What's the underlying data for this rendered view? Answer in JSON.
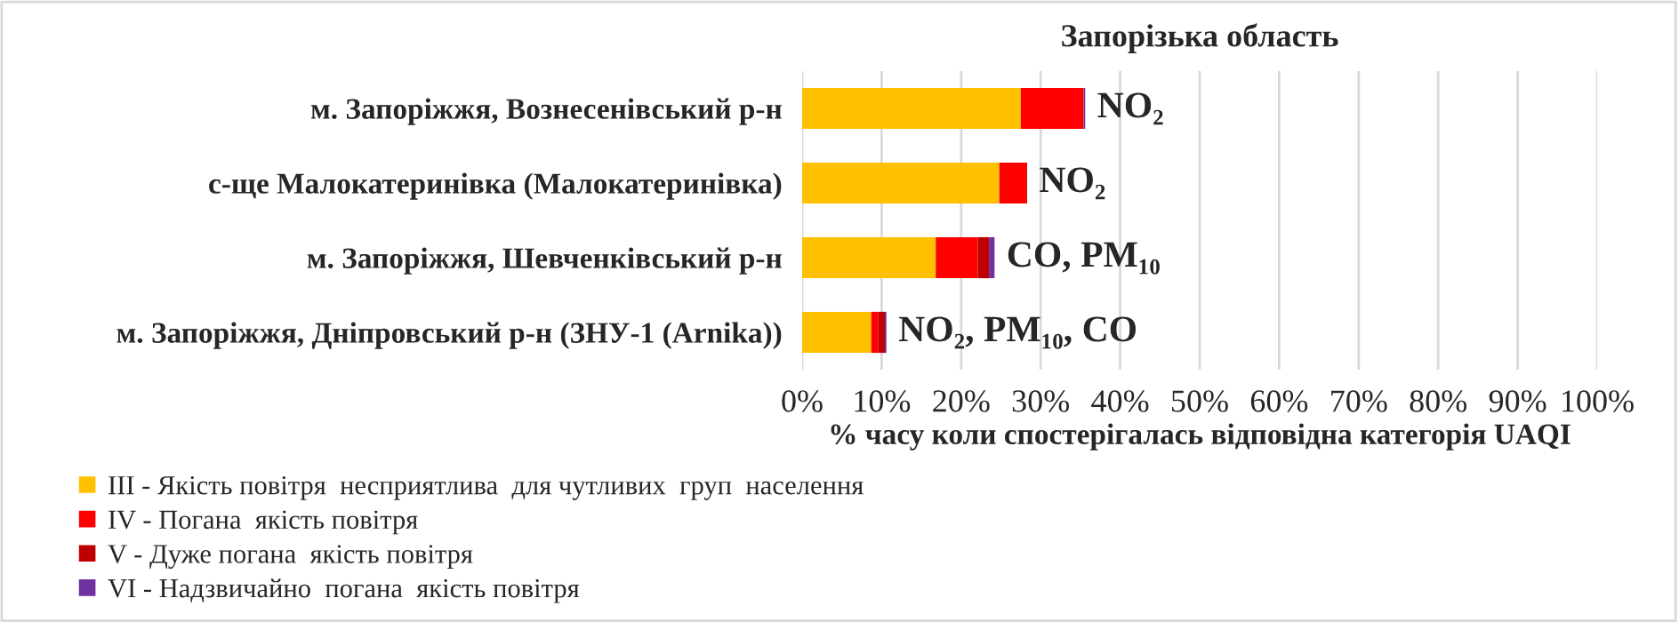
{
  "chart_data": {
    "type": "bar",
    "orientation": "horizontal",
    "stacked": true,
    "title": "Запорізька область",
    "xlabel": "% часу коли спостерігалась відповідна категорія UAQI",
    "categories": [
      "м. Запоріжжя, Вознесенівський р-н",
      "с-ще Малокатеринівка (Малокатеринівка)",
      "м. Запоріжжя, Шевченківський р-н",
      "м. Запоріжжя, Дніпровський р-н (ЗНУ-1 (Arnika))"
    ],
    "series": [
      {
        "name": "III - Якість повітря  несприятлива  для чутливих  груп  населення",
        "color": "#ffc000",
        "values": [
          27.5,
          24.8,
          16.8,
          8.7
        ]
      },
      {
        "name": "IV - Погана  якість повітря",
        "color": "#ff0000",
        "values": [
          7.9,
          3.5,
          5.3,
          0.9
        ]
      },
      {
        "name": "V - Дуже погана  якість повітря",
        "color": "#c00000",
        "values": [
          0,
          0,
          1.4,
          0.8
        ]
      },
      {
        "name": "VI - Надзвичайно  погана  якість повітря",
        "color": "#7030a0",
        "values": [
          0.2,
          0,
          0.7,
          0.2
        ]
      }
    ],
    "xlim": [
      0,
      100
    ],
    "xticks": [
      {
        "value": 0,
        "label": "0%"
      },
      {
        "value": 10,
        "label": "10%"
      },
      {
        "value": 20,
        "label": "20%"
      },
      {
        "value": 30,
        "label": "30%"
      },
      {
        "value": 40,
        "label": "40%"
      },
      {
        "value": 50,
        "label": "50%"
      },
      {
        "value": 60,
        "label": "60%"
      },
      {
        "value": 70,
        "label": "70%"
      },
      {
        "value": 80,
        "label": "80%"
      },
      {
        "value": 90,
        "label": "90%"
      },
      {
        "value": 100,
        "label": "100%"
      }
    ],
    "grid": "x",
    "legend": "bottom",
    "annotations": [
      {
        "text": "NO₂",
        "x": 35.6,
        "y": "м. Запоріжжя, Вознесенівський р-н"
      },
      {
        "text": "NO₂",
        "x": 28.3,
        "y": "с-ще Малокатеринівка (Малокатеринівка)"
      },
      {
        "text": "CO, PM₁₀",
        "x": 24.2,
        "y": "м. Запоріжжя, Шевченківський р-н"
      },
      {
        "text": "NO₂, PM₁₀, CO",
        "x": 10.6,
        "y": "м. Запоріжжя, Дніпровський р-н (ЗНУ-1 (Arnika))"
      }
    ]
  }
}
